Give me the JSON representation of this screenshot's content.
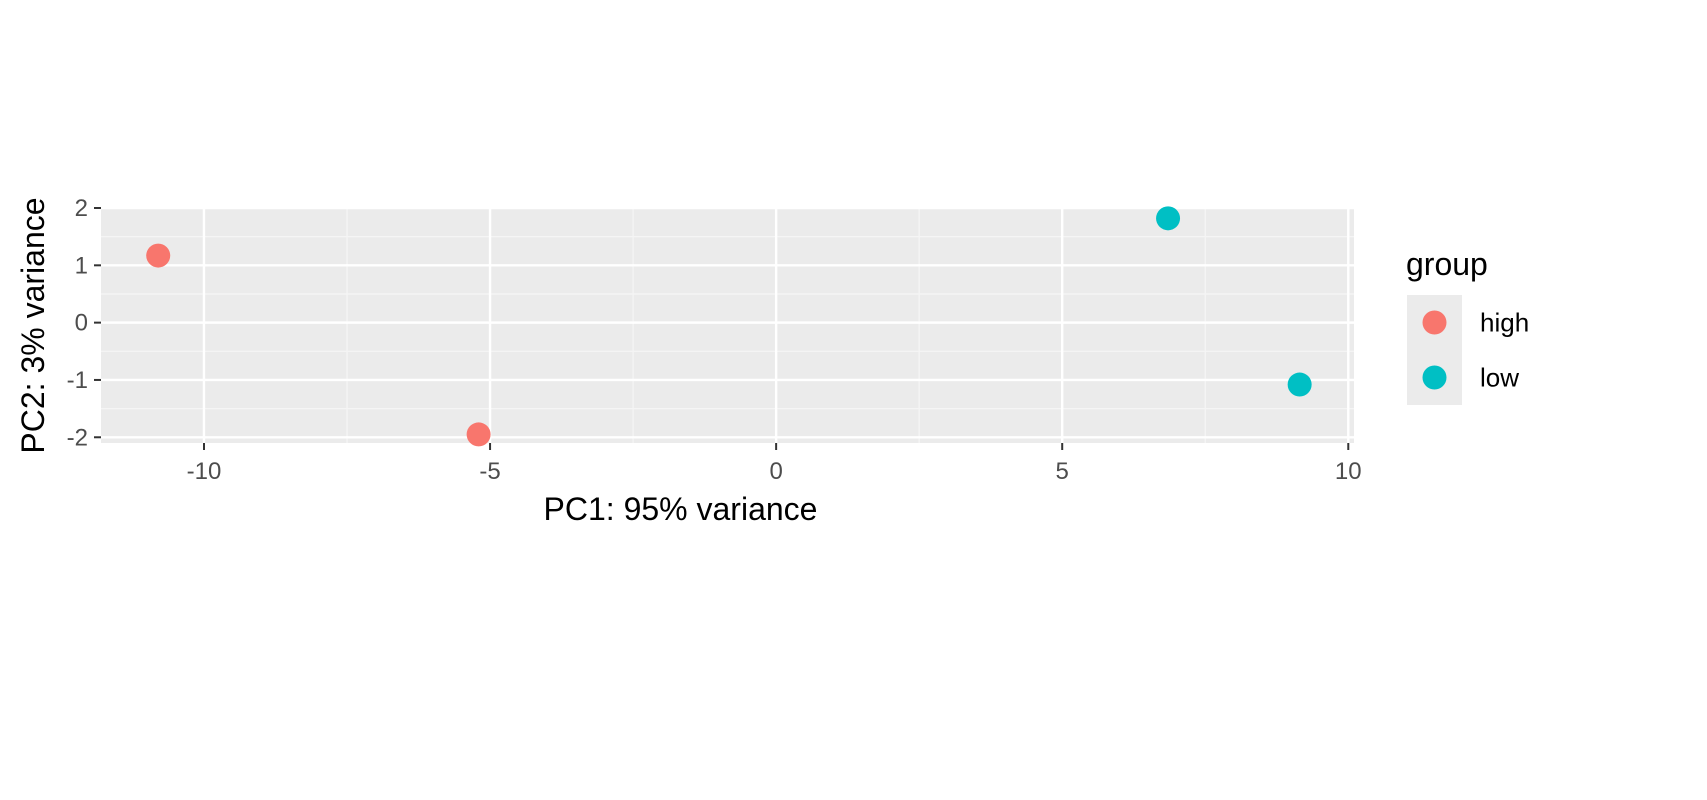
{
  "chart_data": {
    "type": "scatter",
    "title": "",
    "xlabel": "PC1: 95% variance",
    "ylabel": "PC2: 3% variance",
    "xlim": [
      -11.8,
      10.1
    ],
    "ylim": [
      -2.1,
      2.0
    ],
    "xticks": [
      -10,
      -5,
      0,
      5,
      10
    ],
    "xtick_labels": [
      "-10",
      "-5",
      "0",
      "5",
      "10"
    ],
    "yticks": [
      -2,
      -1,
      0,
      1,
      2
    ],
    "ytick_labels": [
      "-2",
      "-1",
      "0",
      "1",
      "2"
    ],
    "grid": true,
    "legend_position": "right",
    "legend_title": "group",
    "series": [
      {
        "name": "high",
        "color": "#F8766D",
        "x": [
          -10.8,
          -5.2
        ],
        "y": [
          1.17,
          -1.95
        ]
      },
      {
        "name": "low",
        "color": "#00BFC4",
        "x": [
          6.85,
          9.15
        ],
        "y": [
          1.82,
          -1.08
        ]
      }
    ]
  },
  "colors": {
    "panel_background": "#EBEBEB",
    "grid_major": "#FFFFFF",
    "grid_minor": "#F5F5F5"
  }
}
